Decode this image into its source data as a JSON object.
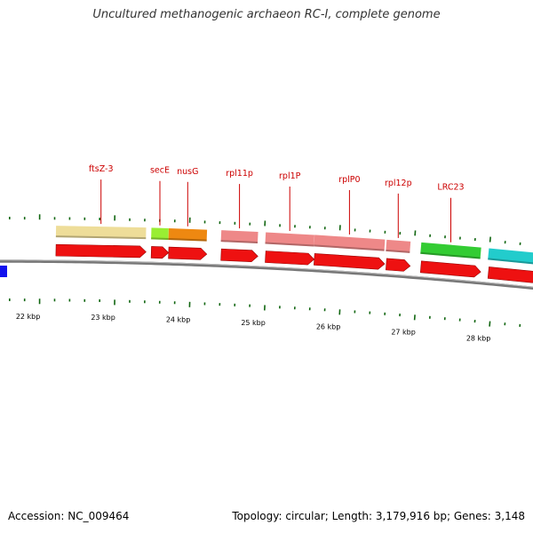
{
  "title": "Uncultured methanogenic archaeon RC-I, complete genome",
  "footer": {
    "accession": "Accession: NC_009464",
    "summary": "Topology: circular; Length: 3,179,916 bp; Genes: 3,148"
  },
  "scale": {
    "ticks": [
      {
        "label": "22 kbp",
        "kbp": 22
      },
      {
        "label": "23 kbp",
        "kbp": 23
      },
      {
        "label": "24 kbp",
        "kbp": 24
      },
      {
        "label": "25 kbp",
        "kbp": 25
      },
      {
        "label": "26 kbp",
        "kbp": 26
      },
      {
        "label": "27 kbp",
        "kbp": 27
      },
      {
        "label": "28 kbp",
        "kbp": 28
      }
    ]
  },
  "genes": [
    {
      "id": "g1",
      "name": "ftsZ-3",
      "start_kbp": 22.36,
      "end_kbp": 23.56,
      "color": "#eedd99",
      "cds_color": "#ee1111"
    },
    {
      "id": "g2",
      "name": "secE",
      "start_kbp": 23.63,
      "end_kbp": 23.86,
      "color": "#99ee33",
      "cds_color": "#ee1111"
    },
    {
      "id": "g3",
      "name": "nusG",
      "start_kbp": 23.86,
      "end_kbp": 24.37,
      "color": "#ee8811",
      "cds_color": "#ee1111"
    },
    {
      "id": "g4",
      "name": "rpl11p",
      "start_kbp": 24.56,
      "end_kbp": 25.05,
      "color": "#ee8888",
      "cds_color": "#ee1111"
    },
    {
      "id": "g5",
      "name": "rpl1P",
      "start_kbp": 25.15,
      "end_kbp": 25.8,
      "color": "#ee8888",
      "cds_color": "#ee1111"
    },
    {
      "id": "g6",
      "name": "rplP0",
      "start_kbp": 25.8,
      "end_kbp": 26.74,
      "color": "#ee8888",
      "cds_color": "#ee1111"
    },
    {
      "id": "g7",
      "name": "rpl12p",
      "start_kbp": 26.76,
      "end_kbp": 27.08,
      "color": "#ee8888",
      "cds_color": "#ee1111"
    },
    {
      "id": "g8",
      "name": "LRC23",
      "start_kbp": 27.22,
      "end_kbp": 28.02,
      "color": "#33cc33",
      "cds_color": "#ee1111"
    },
    {
      "id": "g9",
      "name": "",
      "start_kbp": 28.12,
      "end_kbp": 28.8,
      "color": "#22cccc",
      "cds_color": "#ee1111"
    }
  ],
  "colors": {
    "backbone": "#777777",
    "tick": "#116611",
    "gene_label": "#cc0000",
    "prev_feature": "#1111ee"
  }
}
